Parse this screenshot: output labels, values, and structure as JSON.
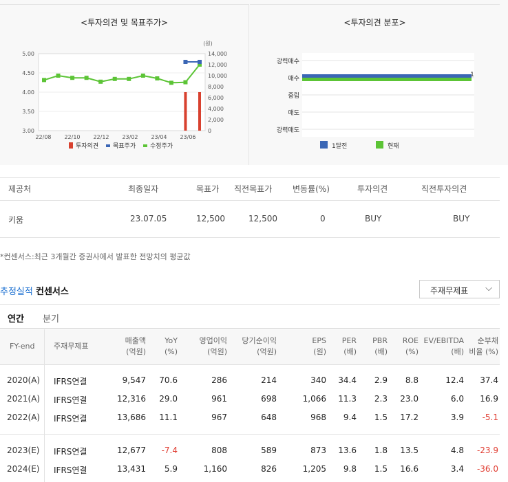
{
  "chart_left": {
    "title": "<투자의견 및 목표주가>",
    "unit_right": "(원)",
    "legend": [
      "투자의견",
      "목표주가",
      "수정주가"
    ],
    "chart_data": {
      "type": "line",
      "x_ticks": [
        "22/08",
        "22/10",
        "22/12",
        "23/02",
        "23/04",
        "23/06"
      ],
      "y_left_ticks": [
        "5.00",
        "4.50",
        "4.00",
        "3.50",
        "3.00"
      ],
      "y_right_ticks": [
        "14,000",
        "12,000",
        "10,000",
        "8,000",
        "6,000",
        "4,000",
        "2,000",
        "0"
      ],
      "ylim_left": [
        3.0,
        5.0
      ],
      "ylim_right": [
        0,
        14000
      ],
      "series": [
        {
          "name": "수정주가",
          "color": "#5cc436",
          "axis": "right",
          "values": [
            9200,
            10000,
            9600,
            9600,
            8900,
            9400,
            9400,
            10000,
            9500,
            8700,
            8800,
            12000
          ]
        },
        {
          "name": "목표주가",
          "color": "#3a66b5",
          "axis": "right",
          "values": [
            null,
            null,
            null,
            null,
            null,
            null,
            null,
            null,
            null,
            null,
            12500,
            12500
          ]
        },
        {
          "name": "투자의견",
          "color": "#d8412f",
          "axis": "left",
          "values": [
            null,
            null,
            null,
            null,
            null,
            null,
            null,
            null,
            null,
            null,
            4.0,
            4.0
          ]
        }
      ]
    }
  },
  "chart_right": {
    "title": "<투자의견 분포>",
    "categories": [
      "강력매수",
      "매수",
      "중립",
      "매도",
      "강력매도"
    ],
    "legend": [
      "1달전",
      "현재"
    ],
    "values_label": "1",
    "chart_data": {
      "type": "bar",
      "categories": [
        "강력매수",
        "매수",
        "중립",
        "매도",
        "강력매도"
      ],
      "series": [
        {
          "name": "1달전",
          "color": "#3a66b5",
          "values": [
            0,
            1,
            0,
            0,
            0
          ]
        },
        {
          "name": "현재",
          "color": "#5cc436",
          "values": [
            0,
            1,
            0,
            0,
            0
          ]
        }
      ]
    }
  },
  "consensus": {
    "headers": [
      "제공처",
      "최종일자",
      "목표가",
      "직전목표가",
      "변동률(%)",
      "투자의견",
      "직전투자의견"
    ],
    "row": [
      "키움",
      "23.07.05",
      "12,500",
      "12,500",
      "0",
      "BUY",
      "BUY"
    ]
  },
  "note": "*컨센서스:최근 3개월간 증권사에서 발표한 전망치의 평균값",
  "estimate": {
    "title_blue": "추정실적",
    "title_dark": "컨센서스",
    "select_value": "주재무제표",
    "tabs": [
      "연간",
      "분기"
    ]
  },
  "financials": {
    "headers": [
      [
        "FY-end",
        ""
      ],
      [
        "주재무제표",
        ""
      ],
      [
        "매출액",
        "(억원)"
      ],
      [
        "YoY",
        "(%)"
      ],
      [
        "영업이익",
        "(억원)"
      ],
      [
        "당기순이익",
        "(억원)"
      ],
      [
        "EPS",
        "(원)"
      ],
      [
        "PER",
        "(배)"
      ],
      [
        "PBR",
        "(배)"
      ],
      [
        "ROE",
        "(%)"
      ],
      [
        "EV/EBITDA",
        "(배)"
      ],
      [
        "순부채",
        "비율 (%)"
      ]
    ],
    "rows": [
      [
        "2020(A)",
        "IFRS연결",
        "9,547",
        "70.6",
        "286",
        "214",
        "340",
        "34.4",
        "2.9",
        "8.8",
        "12.4",
        "37.4"
      ],
      [
        "2021(A)",
        "IFRS연결",
        "12,316",
        "29.0",
        "961",
        "698",
        "1,066",
        "11.3",
        "2.3",
        "23.0",
        "6.0",
        "16.9"
      ],
      [
        "2022(A)",
        "IFRS연결",
        "13,686",
        "11.1",
        "967",
        "648",
        "968",
        "9.4",
        "1.5",
        "17.2",
        "3.9",
        "-5.1"
      ],
      [
        "2023(E)",
        "IFRS연결",
        "12,677",
        "-7.4",
        "808",
        "589",
        "873",
        "13.6",
        "1.8",
        "13.5",
        "4.8",
        "-23.9"
      ],
      [
        "2024(E)",
        "IFRS연결",
        "13,431",
        "5.9",
        "1,160",
        "826",
        "1,205",
        "9.8",
        "1.5",
        "16.6",
        "3.4",
        "-36.0"
      ]
    ]
  },
  "colors": {
    "accent_blue": "#1a6fd1",
    "negative": "#e03c31",
    "bar_red": "#d8412f",
    "line_green": "#5cc436",
    "line_blue": "#3a66b5"
  }
}
